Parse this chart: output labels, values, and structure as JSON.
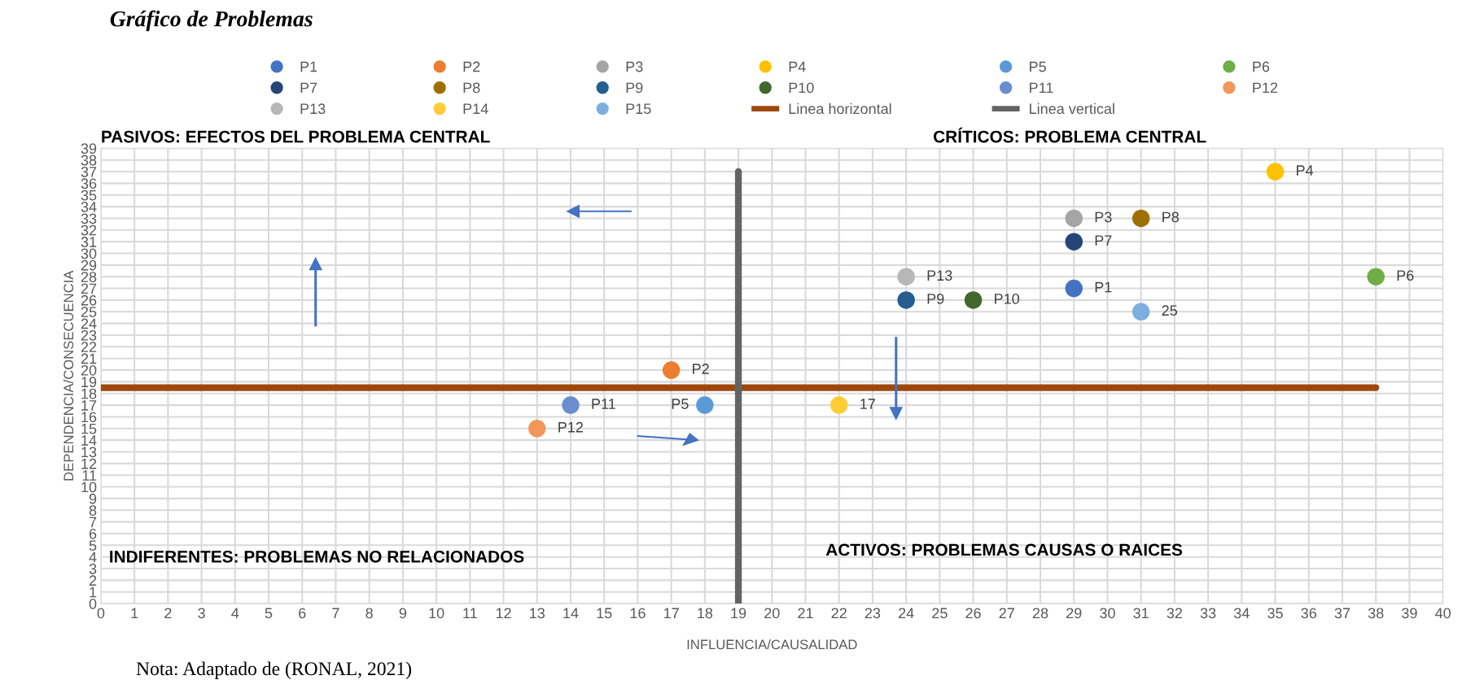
{
  "chart_data": {
    "type": "scatter",
    "title": "Gráfico de Problemas",
    "xlabel": "INFLUENCIA/CAUSALIDAD",
    "ylabel": "DEPENDENCIA/CONSECUENCIA",
    "xlim": [
      0,
      40
    ],
    "ylim": [
      0,
      39
    ],
    "xticks": [
      0,
      1,
      2,
      3,
      4,
      5,
      6,
      7,
      8,
      9,
      10,
      11,
      12,
      13,
      14,
      15,
      16,
      17,
      18,
      19,
      20,
      21,
      22,
      23,
      24,
      25,
      26,
      27,
      28,
      29,
      30,
      31,
      32,
      33,
      34,
      35,
      36,
      37,
      38,
      39,
      40
    ],
    "yticks": [
      0,
      1,
      2,
      3,
      4,
      5,
      6,
      7,
      8,
      9,
      10,
      11,
      12,
      13,
      14,
      15,
      16,
      17,
      18,
      19,
      20,
      21,
      22,
      23,
      24,
      25,
      26,
      27,
      28,
      29,
      30,
      31,
      32,
      33,
      34,
      35,
      36,
      37,
      38,
      39
    ],
    "grid": true,
    "legend": "top",
    "marker": "circle",
    "series": [
      {
        "name": "P1",
        "color": "#4472c4",
        "x": [
          29
        ],
        "values": [
          27
        ],
        "value_labels": [
          "P1"
        ]
      },
      {
        "name": "P2",
        "color": "#ed7d31",
        "x": [
          17
        ],
        "values": [
          20
        ],
        "value_labels": [
          "P2"
        ]
      },
      {
        "name": "P3",
        "color": "#a5a5a5",
        "x": [
          29
        ],
        "values": [
          33
        ],
        "value_labels": [
          "P3"
        ]
      },
      {
        "name": "P4",
        "color": "#ffc000",
        "x": [
          35
        ],
        "values": [
          37
        ],
        "value_labels": [
          "P4"
        ]
      },
      {
        "name": "P5",
        "color": "#5b9bd5",
        "x": [
          18
        ],
        "values": [
          17
        ],
        "value_labels": [
          "P5"
        ]
      },
      {
        "name": "P6",
        "color": "#70ad47",
        "x": [
          38
        ],
        "values": [
          28
        ],
        "value_labels": [
          "P6"
        ]
      },
      {
        "name": "P7",
        "color": "#264478",
        "x": [
          29
        ],
        "values": [
          31
        ],
        "value_labels": [
          "P7"
        ]
      },
      {
        "name": "P8",
        "color": "#9e7000",
        "x": [
          31
        ],
        "values": [
          33
        ],
        "value_labels": [
          "P8"
        ]
      },
      {
        "name": "P9",
        "color": "#255e91",
        "x": [
          24
        ],
        "values": [
          26
        ],
        "value_labels": [
          "P9"
        ]
      },
      {
        "name": "P10",
        "color": "#43682b",
        "x": [
          26
        ],
        "values": [
          26
        ],
        "value_labels": [
          "P10"
        ]
      },
      {
        "name": "P11",
        "color": "#698ed0",
        "x": [
          14
        ],
        "values": [
          17
        ],
        "value_labels": [
          "P11"
        ]
      },
      {
        "name": "P12",
        "color": "#f1975a",
        "x": [
          13
        ],
        "values": [
          15
        ],
        "value_labels": [
          "P12"
        ]
      },
      {
        "name": "P13",
        "color": "#b7b7b7",
        "x": [
          24
        ],
        "values": [
          28
        ],
        "value_labels": [
          "P13"
        ]
      },
      {
        "name": "P14",
        "color": "#ffcd33",
        "x": [
          22
        ],
        "values": [
          17
        ],
        "value_labels": [
          "17"
        ]
      },
      {
        "name": "P15",
        "color": "#7cafdd",
        "x": [
          31
        ],
        "values": [
          25
        ],
        "value_labels": [
          "25"
        ]
      },
      {
        "name": "Linea horizontal",
        "type": "line",
        "color": "#9e480e",
        "marker": "none",
        "x": [
          0,
          38
        ],
        "values": [
          18.5,
          18.5
        ]
      },
      {
        "name": "Linea vertical",
        "type": "line",
        "color": "#636363",
        "marker": "none",
        "x": [
          19,
          19
        ],
        "values": [
          0,
          37
        ]
      }
    ],
    "annotations": [
      "PASIVOS: EFECTOS DEL PROBLEMA CENTRAL",
      "CRÍTICOS: PROBLEMA CENTRAL",
      "INDIFERENTES: PROBLEMAS NO RELACIONADOS",
      "ACTIVOS: PROBLEMAS CAUSAS O RAICES",
      "Nota: Adaptado de (RONAL, 2021)"
    ]
  }
}
